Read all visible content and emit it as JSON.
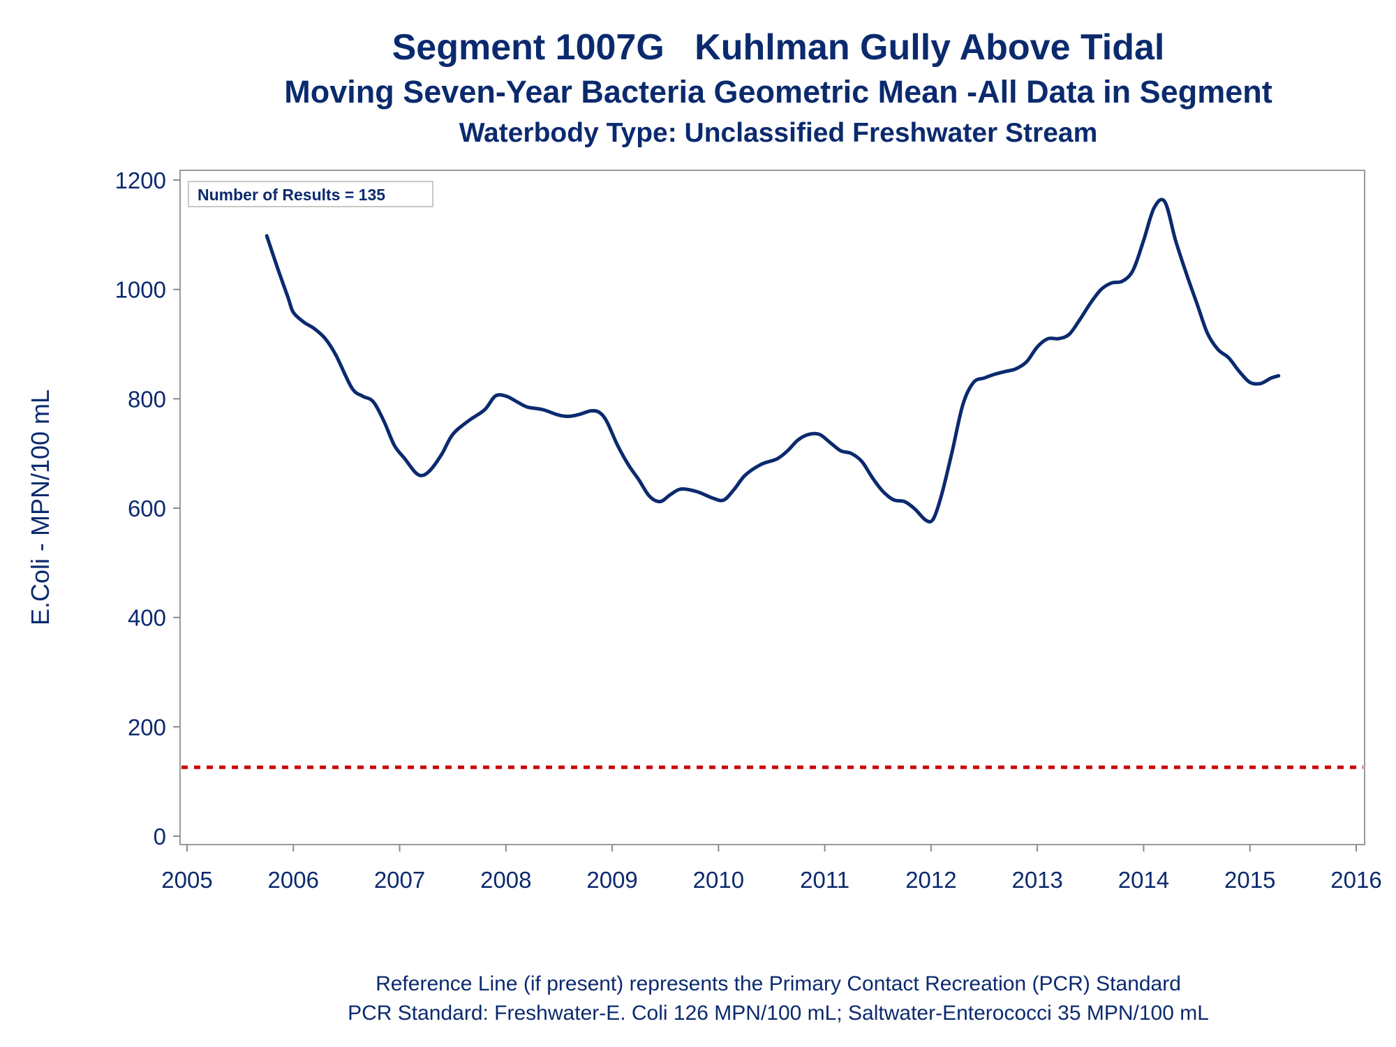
{
  "chart_data": {
    "type": "line",
    "title": "Segment 1007G   Kuhlman Gully Above Tidal",
    "subtitle": "Moving Seven-Year Bacteria Geometric Mean -All Data in Segment",
    "subtitle2": "Waterbody Type: Unclassified Freshwater Stream",
    "xlabel": "",
    "ylabel": "E.Coli - MPN/100 mL",
    "xlim": [
      2005,
      2016
    ],
    "ylim": [
      0,
      1200
    ],
    "x_ticks": [
      "2005",
      "2006",
      "2007",
      "2008",
      "2009",
      "2010",
      "2011",
      "2012",
      "2013",
      "2014",
      "2015",
      "2016"
    ],
    "y_ticks": [
      "0",
      "200",
      "400",
      "600",
      "800",
      "1000",
      "1200"
    ],
    "grid": false,
    "annotation": "Number of Results = 135",
    "reference_line": {
      "value": 126,
      "style": "dashed",
      "color": "#cc0000"
    },
    "line_color": "#0b2a6e",
    "series": [
      {
        "x": [
          2005.75,
          2005.85,
          2005.95,
          2006.0,
          2006.1,
          2006.2,
          2006.3,
          2006.4,
          2006.55,
          2006.65,
          2006.75,
          2006.85,
          2006.95,
          2007.05,
          2007.15,
          2007.22,
          2007.3,
          2007.4,
          2007.5,
          2007.65,
          2007.8,
          2007.9,
          2008.0,
          2008.1,
          2008.2,
          2008.35,
          2008.5,
          2008.6,
          2008.7,
          2008.8,
          2008.88,
          2008.95,
          2009.05,
          2009.15,
          2009.25,
          2009.35,
          2009.45,
          2009.55,
          2009.65,
          2009.8,
          2009.95,
          2010.05,
          2010.15,
          2010.25,
          2010.4,
          2010.55,
          2010.65,
          2010.75,
          2010.85,
          2010.95,
          2011.05,
          2011.15,
          2011.25,
          2011.35,
          2011.45,
          2011.55,
          2011.65,
          2011.75,
          2011.85,
          2011.95,
          2012.02,
          2012.1,
          2012.2,
          2012.3,
          2012.4,
          2012.5,
          2012.6,
          2012.7,
          2012.8,
          2012.9,
          2013.0,
          2013.1,
          2013.2,
          2013.3,
          2013.4,
          2013.5,
          2013.6,
          2013.7,
          2013.8,
          2013.9,
          2014.0,
          2014.1,
          2014.2,
          2014.3,
          2014.4,
          2014.5,
          2014.6,
          2014.7,
          2014.8,
          2014.9,
          2015.0,
          2015.1,
          2015.2,
          2015.27
        ],
        "y": [
          1098,
          1040,
          985,
          958,
          940,
          928,
          910,
          880,
          820,
          805,
          795,
          760,
          715,
          690,
          665,
          660,
          672,
          700,
          735,
          760,
          780,
          805,
          805,
          795,
          785,
          780,
          770,
          768,
          772,
          778,
          775,
          758,
          715,
          680,
          652,
          622,
          612,
          625,
          635,
          630,
          618,
          615,
          635,
          660,
          680,
          690,
          705,
          725,
          735,
          735,
          720,
          705,
          700,
          685,
          655,
          630,
          615,
          612,
          598,
          578,
          580,
          625,
          705,
          790,
          830,
          838,
          845,
          850,
          855,
          868,
          895,
          910,
          910,
          918,
          945,
          975,
          1000,
          1012,
          1015,
          1035,
          1090,
          1150,
          1160,
          1090,
          1030,
          975,
          920,
          890,
          875,
          850,
          830,
          828,
          838,
          842
        ]
      }
    ],
    "footnote1": "Reference Line (if present) represents the Primary Contact Recreation (PCR) Standard",
    "footnote2": "PCR Standard: Freshwater-E. Coli 126 MPN/100 mL; Saltwater-Enterococci 35 MPN/100 mL"
  }
}
